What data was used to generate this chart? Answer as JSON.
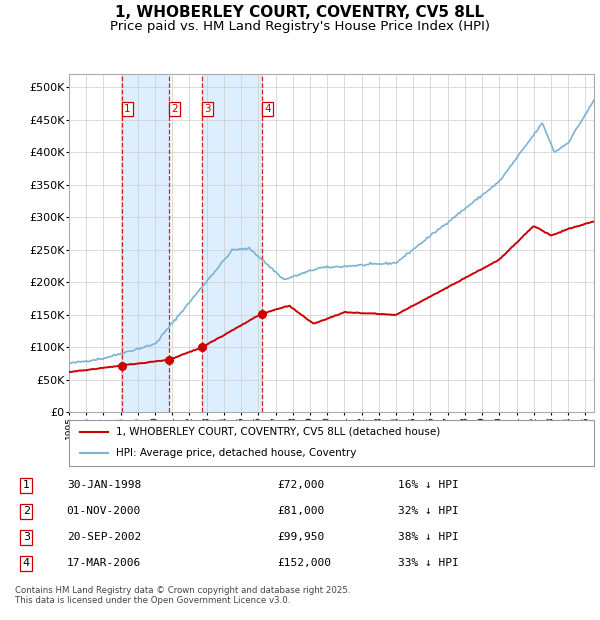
{
  "title": "1, WHOBERLEY COURT, COVENTRY, CV5 8LL",
  "subtitle": "Price paid vs. HM Land Registry's House Price Index (HPI)",
  "footer": "Contains HM Land Registry data © Crown copyright and database right 2025.\nThis data is licensed under the Open Government Licence v3.0.",
  "legend_line1": "1, WHOBERLEY COURT, COVENTRY, CV5 8LL (detached house)",
  "legend_line2": "HPI: Average price, detached house, Coventry",
  "transactions": [
    {
      "num": 1,
      "date": "30-JAN-1998",
      "year": 1998.08,
      "price": 72000,
      "pct": "16%",
      "dir": "↓"
    },
    {
      "num": 2,
      "date": "01-NOV-2000",
      "year": 2000.83,
      "price": 81000,
      "pct": "32%",
      "dir": "↓"
    },
    {
      "num": 3,
      "date": "20-SEP-2002",
      "year": 2002.72,
      "price": 99950,
      "pct": "38%",
      "dir": "↓"
    },
    {
      "num": 4,
      "date": "17-MAR-2006",
      "year": 2006.21,
      "price": 152000,
      "pct": "33%",
      "dir": "↓"
    }
  ],
  "hpi_color": "#7ab3d4",
  "price_color": "#cc0000",
  "vline_color": "#cc0000",
  "shade_color": "#ddeeff",
  "background_color": "#ffffff",
  "grid_color": "#cccccc",
  "ylim": [
    0,
    520000
  ],
  "ytick_vals": [
    0,
    50000,
    100000,
    150000,
    200000,
    250000,
    300000,
    350000,
    400000,
    450000,
    500000
  ],
  "ytick_labels": [
    "£0",
    "£50K",
    "£100K",
    "£150K",
    "£200K",
    "£250K",
    "£300K",
    "£350K",
    "£400K",
    "£450K",
    "£500K"
  ],
  "xlim_start": 1995.0,
  "xlim_end": 2025.5
}
